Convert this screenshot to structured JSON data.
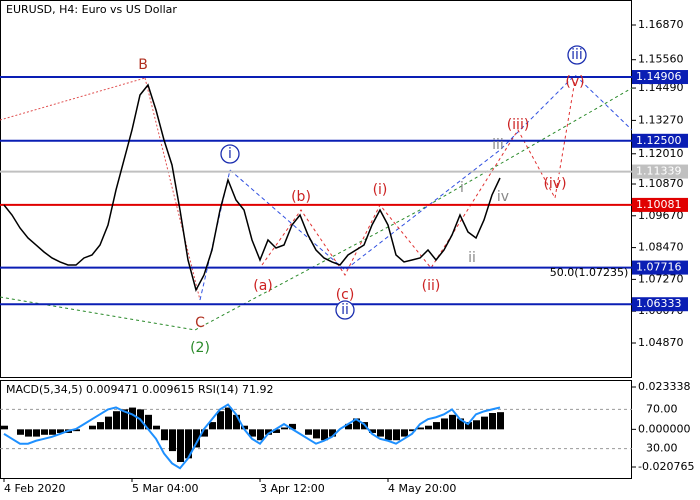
{
  "chart_data": [
    {
      "type": "line",
      "title": "EURUSD, H4:  Euro vs US Dollar",
      "color": "#000000",
      "categories": [
        "4 Feb 2020",
        null,
        null,
        null,
        null,
        null,
        null,
        null,
        null,
        null,
        null,
        null,
        null,
        null,
        null,
        null,
        "5 Mar 04:00",
        null,
        null,
        null,
        null,
        null,
        null,
        null,
        null,
        null,
        null,
        null,
        null,
        null,
        null,
        null,
        "3 Apr 12:00",
        null,
        null,
        null,
        null,
        null,
        null,
        null,
        null,
        null,
        null,
        null,
        null,
        null,
        null,
        null,
        "4 May 20:00",
        null,
        null,
        null,
        null,
        null,
        null,
        null,
        null,
        null,
        null,
        null,
        null,
        null,
        null
      ],
      "values": [
        1.10078,
        1.097,
        1.0921,
        1.08832,
        1.08568,
        1.08304,
        1.08078,
        1.07927,
        1.07813,
        1.07813,
        1.08078,
        1.08191,
        1.08568,
        1.09323,
        1.10644,
        1.11776,
        1.12908,
        1.14228,
        1.14606,
        1.13662,
        1.1253,
        1.11587,
        1.09889,
        1.08002,
        1.0687,
        1.07436,
        1.08379,
        1.09889,
        1.11021,
        1.10266,
        1.09889,
        1.08757,
        1.08002,
        1.08757,
        1.08455,
        1.08568,
        1.09323,
        1.097,
        1.08945,
        1.08379,
        1.08078,
        1.07927,
        1.07813,
        1.08191,
        1.08379,
        1.08568,
        1.09323,
        1.09889,
        1.09323,
        1.08191,
        1.07927,
        1.08002,
        1.08078,
        1.08379,
        1.08002,
        1.08379,
        1.08945,
        1.097,
        1.09059,
        1.08832,
        1.09512,
        1.10455,
        1.11096
      ],
      "ylim": [
        1.03549,
        1.17813
      ],
      "yticks": [
        {
          "value": 1.1687,
          "label": "1.16870"
        },
        {
          "value": 1.1556,
          "label": "1.15560"
        },
        {
          "value": 1.1449,
          "label": "1.14490"
        },
        {
          "value": 1.1327,
          "label": "1.13270"
        },
        {
          "value": 1.1201,
          "label": "1.12010"
        },
        {
          "value": 1.1087,
          "label": "1.10870"
        },
        {
          "value": 1.0967,
          "label": "1.09670"
        },
        {
          "value": 1.0847,
          "label": "1.08470"
        },
        {
          "value": 1.0727,
          "label": "1.07270"
        },
        {
          "value": 1.0607,
          "label": "1.06070"
        },
        {
          "value": 1.0487,
          "label": "1.04870"
        }
      ],
      "levels": [
        {
          "value": 1.14906,
          "label": "1.14906",
          "color": "#0a1eb4"
        },
        {
          "value": 1.125,
          "label": "1.12500",
          "color": "#0a1eb4"
        },
        {
          "value": 1.11339,
          "label": "1.11339",
          "color": "#c0c0c0"
        },
        {
          "value": 1.10081,
          "label": "1.10081",
          "color": "#e00000"
        },
        {
          "value": 1.07716,
          "label": "1.07716",
          "color": "#0a1eb4"
        },
        {
          "value": 1.06333,
          "label": "1.06333",
          "color": "#0a1eb4"
        }
      ],
      "annotations": [
        {
          "text": "B",
          "color": "#b03020"
        },
        {
          "text": "C",
          "color": "#b03020"
        },
        {
          "text": "(2)",
          "color": "#2a8a2a"
        },
        {
          "text": "i",
          "color": "#1c2fb0",
          "circled": true
        },
        {
          "text": "(a)",
          "color": "#cc2222"
        },
        {
          "text": "(b)",
          "color": "#cc2222"
        },
        {
          "text": "(c)",
          "color": "#cc2222"
        },
        {
          "text": "ii",
          "color": "#1c2fb0",
          "circled": true
        },
        {
          "text": "(i)",
          "color": "#cc2222"
        },
        {
          "text": "(ii)",
          "color": "#cc2222"
        },
        {
          "text": "(iii)",
          "color": "#cc2222"
        },
        {
          "text": "(iv)",
          "color": "#cc2222"
        },
        {
          "text": "(v)",
          "color": "#cc2222"
        },
        {
          "text": "iii",
          "color": "#1c2fb0",
          "circled": true
        },
        {
          "text": "iii",
          "color": "#888888"
        },
        {
          "text": "iv",
          "color": "#888888"
        },
        {
          "text": "ii",
          "color": "#888888"
        },
        {
          "text": "i",
          "color": "#888888"
        },
        {
          "text": "50.0(1.07235)",
          "color": "#000000"
        }
      ]
    },
    {
      "type": "bar",
      "title": "MACD(5,34,5) 0.009471 0.009615 RSI(14) 71.92",
      "color": "#000000",
      "values": [
        0.002,
        0.0,
        -0.003,
        -0.004,
        -0.004,
        -0.003,
        -0.003,
        -0.002,
        -0.002,
        -0.001,
        0.0,
        0.002,
        0.004,
        0.007,
        0.01,
        0.011,
        0.012,
        0.011,
        0.008,
        0.002,
        -0.006,
        -0.012,
        -0.018,
        -0.016,
        -0.01,
        -0.004,
        0.004,
        0.01,
        0.012,
        0.008,
        0.002,
        -0.004,
        -0.006,
        -0.003,
        -0.002,
        0.001,
        0.003,
        0.0,
        -0.003,
        -0.005,
        -0.006,
        -0.004,
        0.0,
        0.003,
        0.006,
        0.004,
        -0.002,
        -0.004,
        -0.006,
        -0.006,
        -0.004,
        -0.001,
        0.001,
        0.002,
        0.004,
        0.006,
        0.008,
        0.006,
        0.004,
        0.005,
        0.007,
        0.009,
        0.009471
      ],
      "ylim": [
        -0.02683,
        0.0272
      ],
      "yticks": [
        0.023338,
        {
          "value": 0,
          "label": "0.000000"
        },
        -0.020765
      ],
      "line": {
        "color": "#1e90ff",
        "axis": "y2",
        "values": [
          45,
          40,
          35,
          35,
          38,
          40,
          42,
          45,
          48,
          50,
          55,
          60,
          65,
          70,
          72,
          68,
          65,
          60,
          50,
          40,
          25,
          15,
          10,
          20,
          35,
          50,
          60,
          70,
          75,
          65,
          50,
          40,
          35,
          45,
          50,
          55,
          50,
          45,
          40,
          35,
          38,
          42,
          50,
          55,
          60,
          55,
          45,
          40,
          38,
          35,
          40,
          45,
          55,
          60,
          62,
          65,
          70,
          60,
          55,
          65,
          68,
          70,
          71.92
        ]
      },
      "y2lim": [
        0,
        100
      ],
      "y2ticks": [
        {
          "value": 70,
          "label": "70.00"
        },
        {
          "value": 30,
          "label": "30.00"
        }
      ]
    }
  ]
}
